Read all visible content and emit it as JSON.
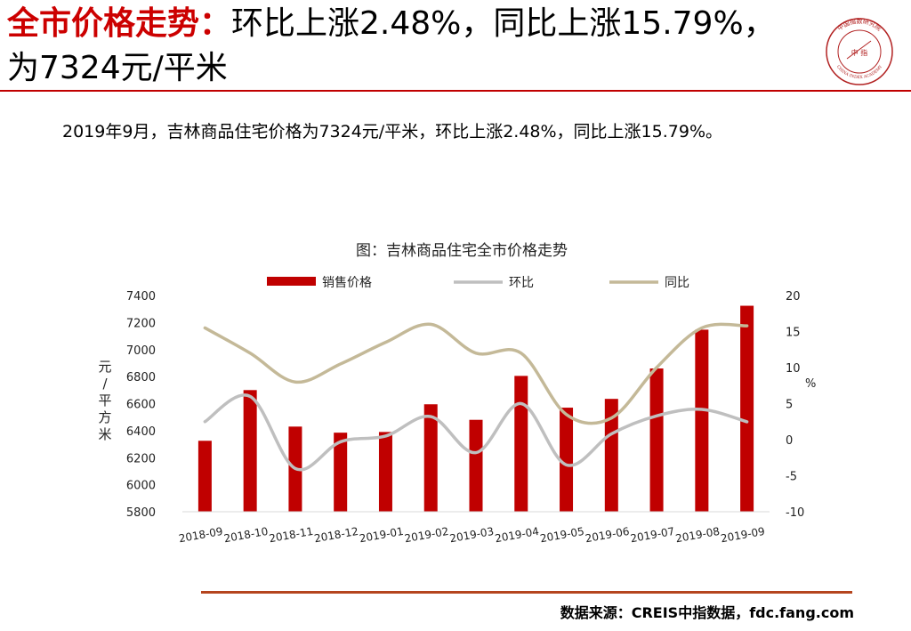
{
  "header": {
    "title_highlight": "全市价格走势：",
    "title_rest": "环比上涨2.48%，同比上涨15.79%，为7324元/平米"
  },
  "summary": "2019年9月，吉林商品住宅价格为7324元/平米，环比上涨2.48%，同比上涨15.79%。",
  "logo": {
    "seal_text": "中国指数研究院",
    "center_text": "中 指",
    "english_text": "CHINA INDEX ACADEMY",
    "color": "#b22222"
  },
  "footer": {
    "source": "数据来源：CREIS中指数据，fdc.fang.com"
  },
  "chart_data": {
    "type": "bar",
    "title": "图：吉林商品住宅全市价格走势",
    "categories": [
      "2018-09",
      "2018-10",
      "2018-11",
      "2018-12",
      "2019-01",
      "2019-02",
      "2019-03",
      "2019-04",
      "2019-05",
      "2019-06",
      "2019-07",
      "2019-08",
      "2019-09"
    ],
    "series": [
      {
        "name": "销售价格",
        "kind": "bar",
        "axis": "left",
        "color": "#c00000",
        "values": [
          6325,
          6700,
          6430,
          6385,
          6390,
          6595,
          6480,
          6805,
          6570,
          6635,
          6860,
          7147,
          7324
        ]
      },
      {
        "name": "环比",
        "kind": "line",
        "axis": "right",
        "color": "#bfbfbf",
        "values": [
          2.5,
          6.0,
          -4.0,
          -0.3,
          0.5,
          3.2,
          -1.8,
          5.0,
          -3.5,
          0.8,
          3.3,
          4.2,
          2.48
        ]
      },
      {
        "name": "同比",
        "kind": "line",
        "axis": "right",
        "color": "#c4b998",
        "values": [
          15.5,
          12.0,
          8.0,
          10.5,
          13.5,
          16.0,
          12.0,
          12.0,
          3.5,
          3.0,
          10.0,
          15.5,
          15.79
        ]
      }
    ],
    "ylabel": "元/平方米",
    "y2label": "%",
    "ylim": [
      5800,
      7400
    ],
    "yticks": [
      5800,
      6000,
      6200,
      6400,
      6600,
      6800,
      7000,
      7200,
      7400
    ],
    "y2lim": [
      -10,
      20
    ],
    "y2ticks": [
      -10,
      -5,
      0,
      5,
      10,
      15,
      20
    ],
    "grid": false,
    "legend": "top"
  }
}
